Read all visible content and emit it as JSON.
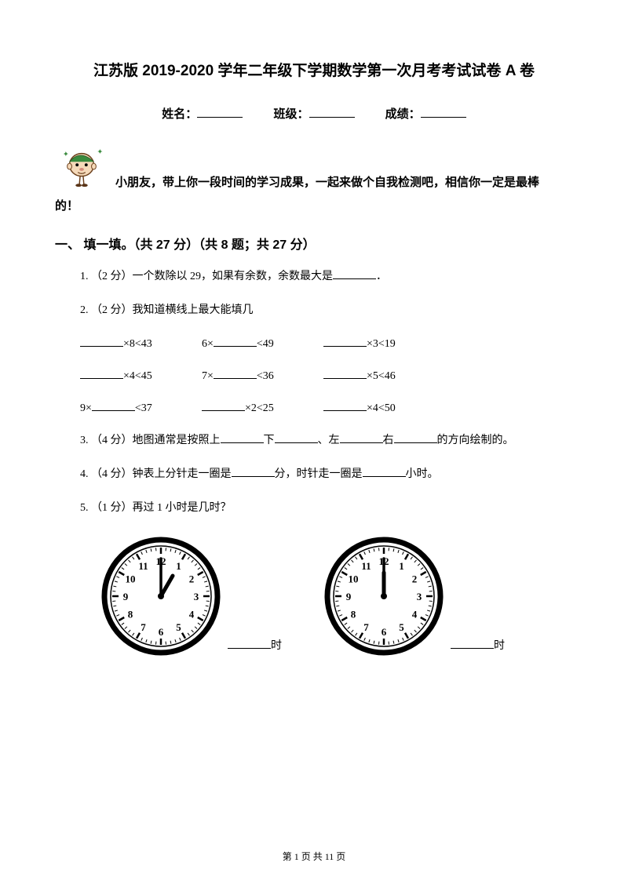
{
  "title": "江苏版 2019-2020 学年二年级下学期数学第一次月考考试试卷 A 卷",
  "info": {
    "name_label": "姓名：",
    "class_label": "班级：",
    "score_label": "成绩："
  },
  "intro": {
    "line1": "小朋友，带上你一段时间的学习成果，一起来做个自我检测吧，相信你一定是最棒",
    "line2": "的！"
  },
  "mascot": {
    "skin": "#f5d9b9",
    "green": "#3a8b3e",
    "line": "#6a3e1a"
  },
  "section1_title": "一、 填一填。（共 27 分）（共 8 题；共 27 分）",
  "questions": {
    "q1": "1.  （2 分）一个数除以 29，如果有余数，余数最大是",
    "q1_suffix": "．",
    "q2": "2.  （2 分）我知道横线上最大能填几",
    "q2_rows": [
      [
        {
          "blank_pos": "before",
          "text": "×8<43"
        },
        {
          "blank_pos": "after",
          "prefix": "6×",
          "text": "<49"
        },
        {
          "blank_pos": "before",
          "text": "×3<19"
        }
      ],
      [
        {
          "blank_pos": "before",
          "text": "×4<45"
        },
        {
          "blank_pos": "after",
          "prefix": "7×",
          "text": "<36"
        },
        {
          "blank_pos": "before",
          "text": "×5<46"
        }
      ],
      [
        {
          "blank_pos": "after",
          "prefix": "9×",
          "text": "<37"
        },
        {
          "blank_pos": "before",
          "text": "×2<25"
        },
        {
          "blank_pos": "before",
          "text": "×4<50"
        }
      ]
    ],
    "q3_pre": "3.  （4 分）地图通常是按照上",
    "q3_mid1": "下",
    "q3_mid2": "、左",
    "q3_mid3": "右",
    "q3_suf": "的方向绘制的。",
    "q4_pre": "4.  （4 分）钟表上分针走一圈是",
    "q4_mid": "分，时针走一圈是",
    "q4_suf": "小时。",
    "q5": "5.  （1 分）再过 1 小时是几时？"
  },
  "clocks": {
    "clock1": {
      "hour_angle": 30,
      "minute_angle": 0
    },
    "clock2": {
      "hour_angle": 0,
      "minute_angle": 0
    },
    "label": "时"
  },
  "footer": {
    "text_pre": "第 ",
    "page_current": "1",
    "text_mid": " 页 共 ",
    "page_total": "11",
    "text_suf": " 页"
  }
}
